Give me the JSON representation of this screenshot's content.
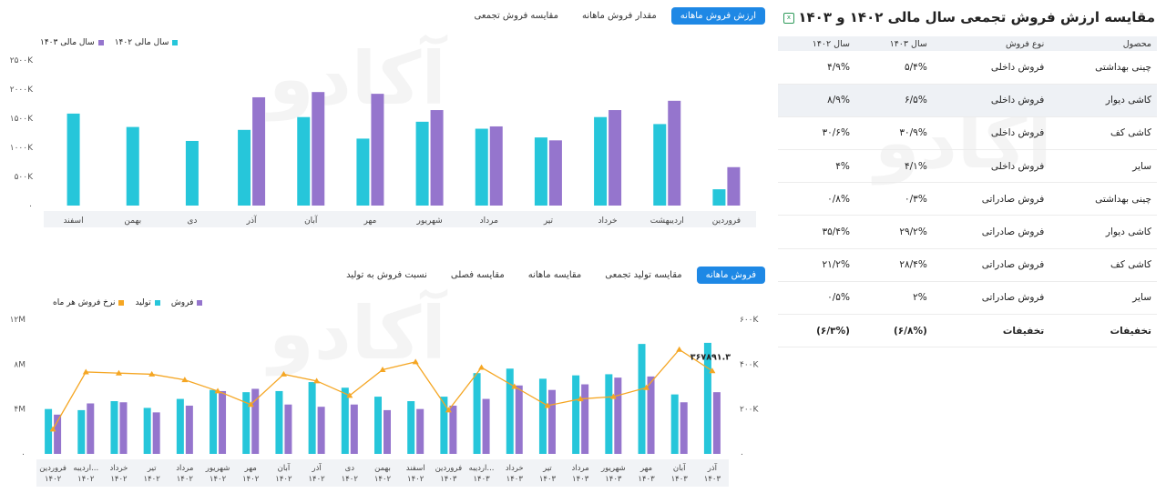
{
  "chart1_tabs": [
    {
      "label": "ارزش فروش ماهانه",
      "active": true
    },
    {
      "label": "مقدار فروش ماهانه",
      "active": false
    },
    {
      "label": "مقایسه فروش تجمعی",
      "active": false
    }
  ],
  "chart2_tabs": [
    {
      "label": "فروش ماهانه",
      "active": true
    },
    {
      "label": "مقایسه تولید تجمعی",
      "active": false
    },
    {
      "label": "مقایسه ماهانه",
      "active": false
    },
    {
      "label": "مقایسه فصلی",
      "active": false
    },
    {
      "label": "نسبت فروش به تولید",
      "active": false
    }
  ],
  "watermark": "آکادو",
  "panel": {
    "title": "مقایسه ارزش فروش تجمعی سال مالی ۱۴۰۲ و ۱۴۰۳",
    "export_icon": "excel-export-icon",
    "headers": [
      "محصول",
      "نوع فروش",
      "سال ۱۴۰۳",
      "سال ۱۴۰۲"
    ],
    "rows": [
      {
        "product": "چینی بهداشتی",
        "type": "فروش داخلی",
        "y1403": "۵/۴%",
        "y1402": "۴/۹%",
        "highlight": false
      },
      {
        "product": "کاشی دیوار",
        "type": "فروش داخلی",
        "y1403": "۶/۵%",
        "y1402": "۸/۹%",
        "highlight": true
      },
      {
        "product": "کاشی کف",
        "type": "فروش داخلی",
        "y1403": "۳۰/۹%",
        "y1402": "۳۰/۶%",
        "highlight": false
      },
      {
        "product": "سایر",
        "type": "فروش داخلی",
        "y1403": "۴/۱%",
        "y1402": "۴%",
        "highlight": false
      },
      {
        "product": "چینی بهداشتی",
        "type": "فروش صادراتی",
        "y1403": "۰/۳%",
        "y1402": "۰/۸%",
        "highlight": false
      },
      {
        "product": "کاشی دیوار",
        "type": "فروش صادراتی",
        "y1403": "۲۹/۲%",
        "y1402": "۳۵/۴%",
        "highlight": false
      },
      {
        "product": "کاشی کف",
        "type": "فروش صادراتی",
        "y1403": "۲۸/۴%",
        "y1402": "۲۱/۲%",
        "highlight": false
      },
      {
        "product": "سایر",
        "type": "فروش صادراتی",
        "y1403": "۲%",
        "y1402": "۰/۵%",
        "highlight": false
      },
      {
        "product": "تخفیفات",
        "type": "تخفیفات",
        "y1403": "(۶/۸%)",
        "y1402": "(۶/۳%)",
        "highlight": false,
        "total": true
      }
    ]
  },
  "chart_data": [
    {
      "type": "bar",
      "categories": [
        "فروردین",
        "اردیبهشت",
        "خرداد",
        "تیر",
        "مرداد",
        "شهریور",
        "مهر",
        "آبان",
        "آذر",
        "دی",
        "بهمن",
        "اسفند"
      ],
      "series": [
        {
          "name": "سال مالی ۱۴۰۲",
          "color": "#26c6da",
          "values": [
            280000,
            1400000,
            1520000,
            1170000,
            1320000,
            1440000,
            1150000,
            1520000,
            1300000,
            1110000,
            1350000,
            1580000
          ]
        },
        {
          "name": "سال مالی ۱۴۰۳",
          "color": "#9575cd",
          "values": [
            660000,
            1800000,
            1640000,
            1120000,
            1360000,
            1640000,
            1920000,
            1950000,
            1860000,
            null,
            null,
            null
          ]
        }
      ],
      "yticks": [
        "۰",
        "۵۰۰K",
        "۱۰۰۰K",
        "۱۵۰۰K",
        "۲۰۰۰K",
        "۲۵۰۰K"
      ],
      "ylim": [
        0,
        2500000
      ],
      "legend_position": "top-left",
      "grid": false
    },
    {
      "type": "bar",
      "categories": [
        "فروردین ۱۴۰۲",
        "اردیبهشت ۱۴۰۲",
        "خرداد ۱۴۰۲",
        "تیر ۱۴۰۲",
        "مرداد ۱۴۰۲",
        "شهریور ۱۴۰۲",
        "مهر ۱۴۰۲",
        "آبان ۱۴۰۲",
        "آذر ۱۴۰۲",
        "دی ۱۴۰۲",
        "بهمن ۱۴۰۲",
        "اسفند ۱۴۰۲",
        "فروردین ۱۴۰۳",
        "اردیبهشت ۱۴۰۳",
        "خرداد ۱۴۰۳",
        "تیر ۱۴۰۳",
        "مرداد ۱۴۰۳",
        "شهریور ۱۴۰۳",
        "مهر ۱۴۰۳",
        "آبان ۱۴۰۳",
        "آذر ۱۴۰۳"
      ],
      "category_labels": [
        [
          "فروردین",
          "۱۴۰۲"
        ],
        [
          "اردیبه...",
          "۱۴۰۲"
        ],
        [
          "خرداد",
          "۱۴۰۲"
        ],
        [
          "تیر",
          "۱۴۰۲"
        ],
        [
          "مرداد",
          "۱۴۰۲"
        ],
        [
          "شهریور",
          "۱۴۰۲"
        ],
        [
          "مهر",
          "۱۴۰۲"
        ],
        [
          "آبان",
          "۱۴۰۲"
        ],
        [
          "آذر",
          "۱۴۰۲"
        ],
        [
          "دی",
          "۱۴۰۲"
        ],
        [
          "بهمن",
          "۱۴۰۲"
        ],
        [
          "اسفند",
          "۱۴۰۲"
        ],
        [
          "فروردین",
          "۱۴۰۳"
        ],
        [
          "اردیبه...",
          "۱۴۰۳"
        ],
        [
          "خرداد",
          "۱۴۰۳"
        ],
        [
          "تیر",
          "۱۴۰۳"
        ],
        [
          "مرداد",
          "۱۴۰۳"
        ],
        [
          "شهریور",
          "۱۴۰۳"
        ],
        [
          "مهر",
          "۱۴۰۳"
        ],
        [
          "آبان",
          "۱۴۰۳"
        ],
        [
          "آذر",
          "۱۴۰۳"
        ]
      ],
      "series": [
        {
          "name": "تولید",
          "color": "#26c6da",
          "axis": "left",
          "values": [
            4000000,
            3900000,
            4700000,
            4100000,
            4900000,
            5700000,
            5500000,
            5600000,
            6400000,
            5900000,
            5100000,
            4700000,
            5100000,
            7200000,
            7600000,
            6700000,
            7000000,
            7100000,
            9800000,
            5300000,
            9900000
          ]
        },
        {
          "name": "فروش",
          "color": "#9575cd",
          "axis": "left",
          "values": [
            3500000,
            4500000,
            4600000,
            3700000,
            4300000,
            5600000,
            5800000,
            4400000,
            4200000,
            4400000,
            3900000,
            4000000,
            4300000,
            4900000,
            6100000,
            5700000,
            6200000,
            6800000,
            6900000,
            4600000,
            5500000
          ]
        },
        {
          "name": "نرخ فروش هر ماه",
          "color": "#f5a623",
          "axis": "right",
          "type": "line",
          "values": [
            110000,
            365000,
            360000,
            355000,
            330000,
            280000,
            220000,
            355000,
            325000,
            260000,
            375000,
            410000,
            195000,
            385000,
            300000,
            215000,
            245000,
            255000,
            295000,
            465000,
            370000
          ]
        }
      ],
      "yticks_left": [
        "۰",
        "۴M",
        "۸M",
        "۱۲M"
      ],
      "ylim_left": [
        0,
        12000000
      ],
      "yticks_right": [
        "۰",
        "۲۰۰K",
        "۴۰۰K",
        "۶۰۰K"
      ],
      "ylim_right": [
        0,
        600000
      ],
      "annotation": {
        "text": "۳۶۷۸۹۱.۳"
      },
      "legend_position": "top-left",
      "grid": false
    }
  ]
}
